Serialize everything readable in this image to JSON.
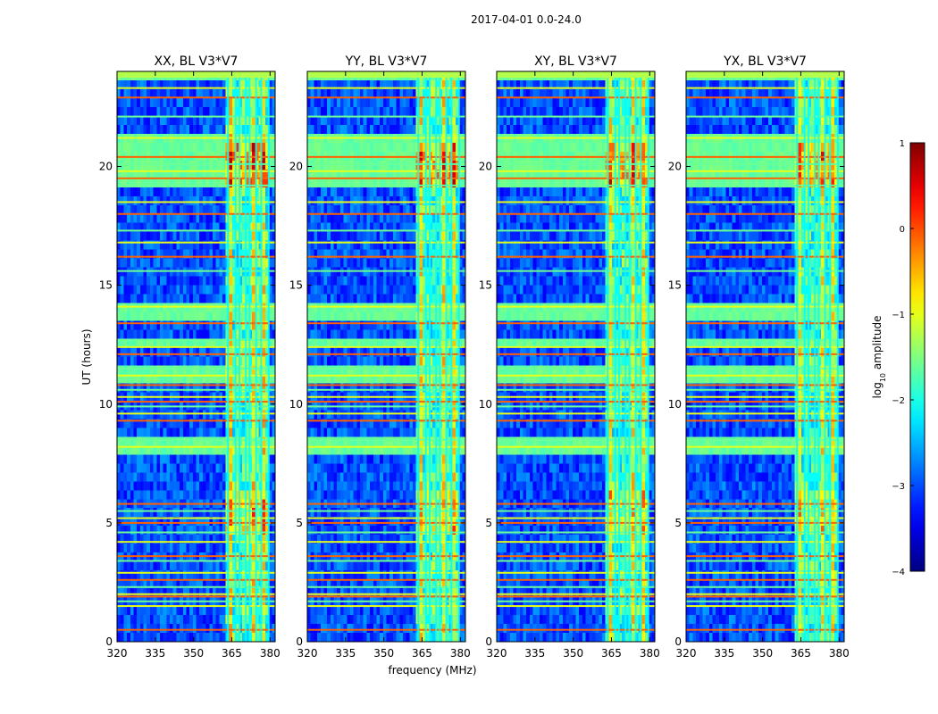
{
  "chart_data": {
    "type": "heatmap",
    "title": "2017-04-01 0.0-24.0",
    "xlabel": "frequency (MHz)",
    "ylabel": "UT (hours)",
    "xlim": [
      320,
      382
    ],
    "ylim": [
      0,
      24
    ],
    "xticks": [
      320,
      335,
      350,
      365,
      380
    ],
    "yticks": [
      0,
      5,
      10,
      15,
      20
    ],
    "panels": [
      {
        "title": "XX, BL V3*V7",
        "band_strength": 1.0
      },
      {
        "title": "YY, BL V3*V7",
        "band_strength": 0.9
      },
      {
        "title": "XY, BL V3*V7",
        "band_strength": 0.85
      },
      {
        "title": "YX, BL V3*V7",
        "band_strength": 0.8
      }
    ],
    "colorbar": {
      "label": "log10 amplitude",
      "label_main": "log",
      "label_sub": "10",
      "label_tail": " amplitude",
      "range": [
        -4,
        1
      ],
      "ticks": [
        1,
        0,
        -1,
        -2,
        -3,
        -4
      ],
      "colormap": "jet",
      "colors": [
        "#00007f",
        "#0000ff",
        "#007fff",
        "#00ffff",
        "#7fff7f",
        "#ffff00",
        "#ff7f00",
        "#ff0000",
        "#7f0000"
      ]
    },
    "rfi_band_mhz": [
      363,
      380
    ],
    "rfi_channels_mhz": [
      363.5,
      366.5,
      368,
      370.5,
      372,
      374.5,
      376.5,
      379.5
    ],
    "flagged_rows_hours": [
      0.5,
      1.5,
      1.7,
      1.9,
      2.0,
      2.3,
      2.6,
      2.9,
      3.4,
      3.6,
      4.2,
      4.6,
      5.0,
      5.2,
      5.5,
      5.8,
      8.2,
      8.5,
      9.3,
      9.6,
      9.9,
      10.1,
      10.3,
      10.6,
      10.8,
      11.2,
      11.5,
      12.1,
      12.4,
      12.7,
      13.4,
      14.1,
      15.6,
      16.2,
      16.8,
      17.3,
      18.0,
      18.5,
      19.2,
      19.5,
      19.8,
      20.1,
      20.4,
      21.2,
      22.1,
      22.9,
      23.3
    ]
  }
}
